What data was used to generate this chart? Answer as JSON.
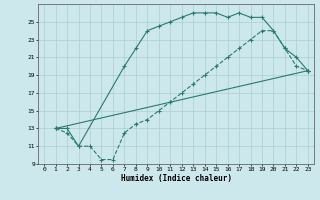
{
  "title": "",
  "xlabel": "Humidex (Indice chaleur)",
  "xlim": [
    -0.5,
    23.5
  ],
  "ylim": [
    9,
    27
  ],
  "xticks": [
    0,
    1,
    2,
    3,
    4,
    5,
    6,
    7,
    8,
    9,
    10,
    11,
    12,
    13,
    14,
    15,
    16,
    17,
    18,
    19,
    20,
    21,
    22,
    23
  ],
  "yticks": [
    9,
    11,
    13,
    15,
    17,
    19,
    21,
    23,
    25
  ],
  "bg_color": "#cce8ec",
  "grid_color": "#aacdd5",
  "line_color": "#2a7a70",
  "line1_x": [
    1,
    2,
    3,
    7,
    8,
    9,
    10,
    11,
    12,
    13,
    14,
    15,
    16,
    17,
    18,
    19,
    20,
    21,
    22,
    23
  ],
  "line1_y": [
    13,
    13,
    11,
    20,
    22,
    24,
    24.5,
    25,
    25.5,
    26,
    26,
    26,
    25.5,
    26,
    25.5,
    25.5,
    24,
    22,
    21,
    19.5
  ],
  "line2_x": [
    1,
    23
  ],
  "line2_y": [
    13,
    19.5
  ],
  "line3_x": [
    1,
    2,
    3,
    4,
    5,
    6,
    7,
    8,
    9,
    10,
    11,
    12,
    13,
    14,
    15,
    16,
    17,
    18,
    19,
    20,
    21,
    22,
    23
  ],
  "line3_y": [
    13,
    12.5,
    11,
    11,
    9.5,
    9.5,
    12.5,
    13.5,
    14,
    15,
    16,
    17,
    18,
    19,
    20,
    21,
    22,
    23,
    24,
    24,
    22,
    20,
    19.5
  ]
}
